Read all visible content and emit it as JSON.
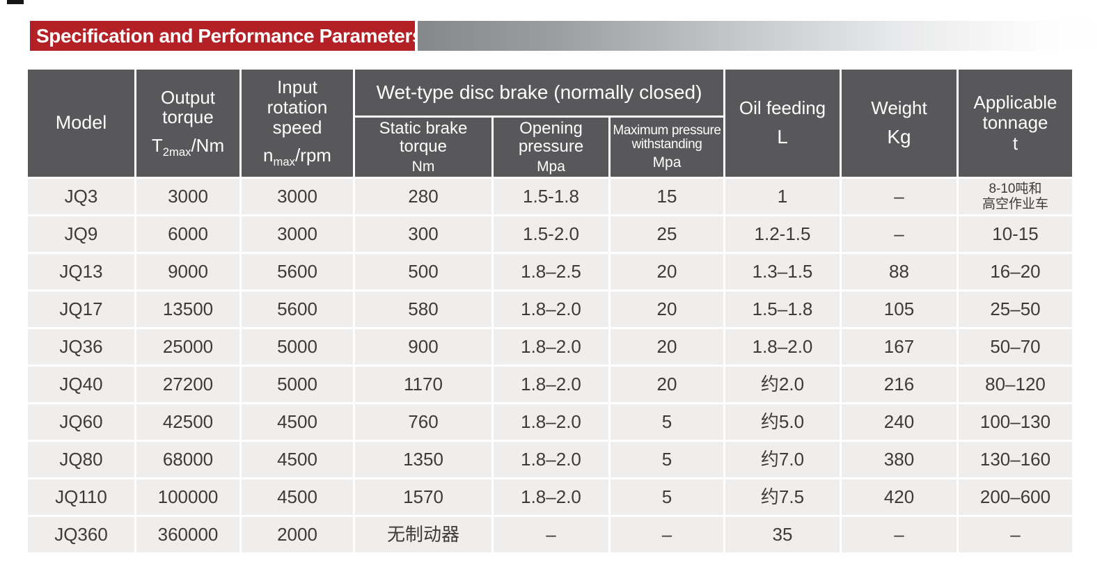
{
  "decor": {
    "accent_red": "#b32025",
    "header_gray": "#58585a",
    "row_gray": "#efeeec",
    "gradient_start_gray": "#85878a"
  },
  "banner": {
    "title": "Specification and Performance Parameters"
  },
  "table": {
    "headers": {
      "model": {
        "label": "Model"
      },
      "output_torque": {
        "label": "Output\ntorque",
        "unit": {
          "base": "T",
          "sub": "2max",
          "rest": "/Nm"
        }
      },
      "input_speed": {
        "label": "Input\nrotation\nspeed",
        "unit": {
          "base": "n",
          "sub": "max",
          "rest": "/rpm"
        }
      },
      "brake_group": {
        "label": "Wet-type disc brake (normally closed)"
      },
      "static_torque": {
        "label": "Static brake\ntorque",
        "unit": "Nm"
      },
      "opening_pressure": {
        "label": "Opening\npressure",
        "unit": "Mpa"
      },
      "max_pressure": {
        "label": "Maximum pressure\nwithstanding",
        "unit": "Mpa"
      },
      "oil_feeding": {
        "label": "Oil feeding",
        "unit": "L"
      },
      "weight": {
        "label": "Weight",
        "unit": "Kg"
      },
      "tonnage": {
        "label": "Applicable\ntonnage",
        "unit": "t"
      }
    },
    "rows": [
      [
        "JQ3",
        "3000",
        "3000",
        "280",
        "1.5-1.8",
        "15",
        "1",
        "–",
        "8-10吨和\n高空作业车"
      ],
      [
        "JQ9",
        "6000",
        "3000",
        "300",
        "1.5-2.0",
        "25",
        "1.2-1.5",
        "–",
        "10-15"
      ],
      [
        "JQ13",
        "9000",
        "5600",
        "500",
        "1.8–2.5",
        "20",
        "1.3–1.5",
        "88",
        "16–20"
      ],
      [
        "JQ17",
        "13500",
        "5600",
        "580",
        "1.8–2.0",
        "20",
        "1.5–1.8",
        "105",
        "25–50"
      ],
      [
        "JQ36",
        "25000",
        "5000",
        "900",
        "1.8–2.0",
        "20",
        "1.8–2.0",
        "167",
        "50–70"
      ],
      [
        "JQ40",
        "27200",
        "5000",
        "1170",
        "1.8–2.0",
        "20",
        "约2.0",
        "216",
        "80–120"
      ],
      [
        "JQ60",
        "42500",
        "4500",
        "760",
        "1.8–2.0",
        "5",
        "约5.0",
        "240",
        "100–130"
      ],
      [
        "JQ80",
        "68000",
        "4500",
        "1350",
        "1.8–2.0",
        "5",
        "约7.0",
        "380",
        "130–160"
      ],
      [
        "JQ110",
        "100000",
        "4500",
        "1570",
        "1.8–2.0",
        "5",
        "约7.5",
        "420",
        "200–600"
      ],
      [
        "JQ360",
        "360000",
        "2000",
        "无制动器",
        "–",
        "–",
        "35",
        "–",
        "–"
      ]
    ]
  }
}
